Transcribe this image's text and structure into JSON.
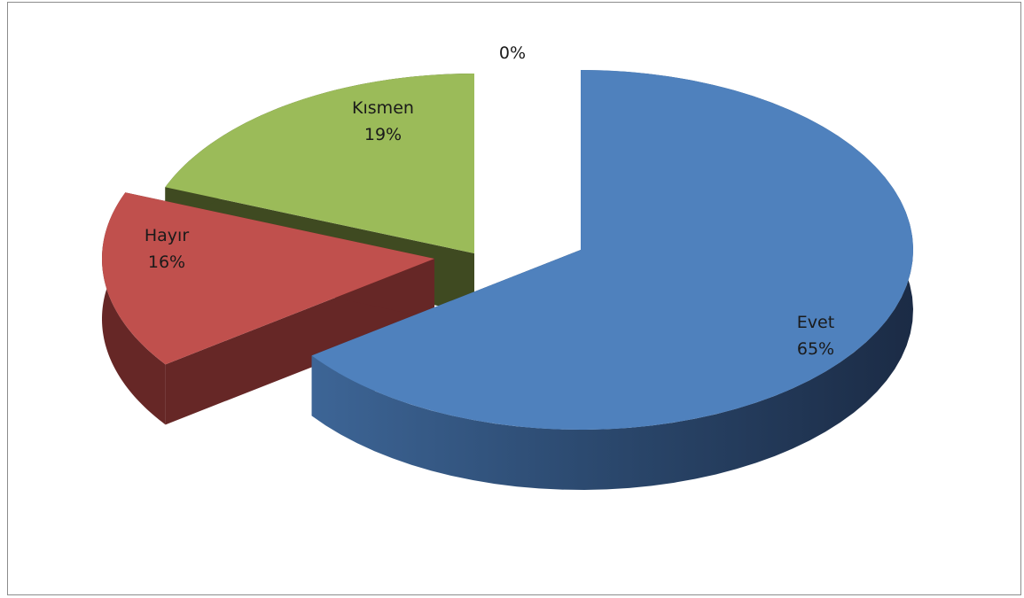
{
  "chart_data": {
    "type": "pie",
    "style": "3d-exploded",
    "slices": [
      {
        "label": "Evet",
        "value": 65,
        "display": "65%",
        "color": "#4f81bd"
      },
      {
        "label": "Hayır",
        "value": 16,
        "display": "16%",
        "color": "#c0504d"
      },
      {
        "label": "Kısmen",
        "value": 19,
        "display": "19%",
        "color": "#9bbb59"
      },
      {
        "label": "",
        "value": 0,
        "display": "0%",
        "color": "#8064a2"
      }
    ],
    "title": "",
    "legend": "none"
  }
}
